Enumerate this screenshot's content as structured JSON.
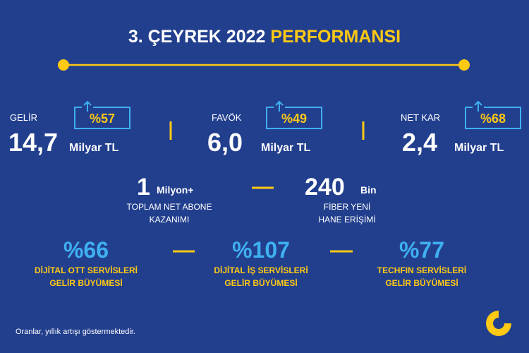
{
  "header": {
    "title": "3. ÇEYREK 2022",
    "title_highlight": "PERFORMANSI"
  },
  "metrics": [
    {
      "label": "GELİR",
      "value": "14,7",
      "unit": "Milyar TL",
      "change": "%57"
    },
    {
      "label": "FAVÖK",
      "value": "6,0",
      "unit": "Milyar TL",
      "change": "%49"
    },
    {
      "label": "NET KAR",
      "value": "2,4",
      "unit": "Milyar TL",
      "change": "%68"
    }
  ],
  "subscribers": [
    {
      "value": "1",
      "unit": "Milyon+",
      "lines": [
        "TOPLAM NET ABONE",
        "KAZANIMI"
      ]
    },
    {
      "value": "240",
      "unit": "Bin",
      "lines": [
        "FİBER YENİ",
        "HANE ERİŞİMİ"
      ]
    }
  ],
  "growth": [
    {
      "value": "%66",
      "lines": [
        "DİJİTAL OTT SERVİSLERİ",
        "GELİR BÜYÜMESİ"
      ]
    },
    {
      "value": "%107",
      "lines": [
        "DİJİTAL İŞ SERVİSLERİ",
        "GELİR BÜYÜMESİ"
      ]
    },
    {
      "value": "%77",
      "lines": [
        "TECHFIN SERVİSLERİ",
        "GELİR BÜYÜMESİ"
      ]
    }
  ],
  "footnote": "Oranlar, yıllık artışı göstermektedir."
}
